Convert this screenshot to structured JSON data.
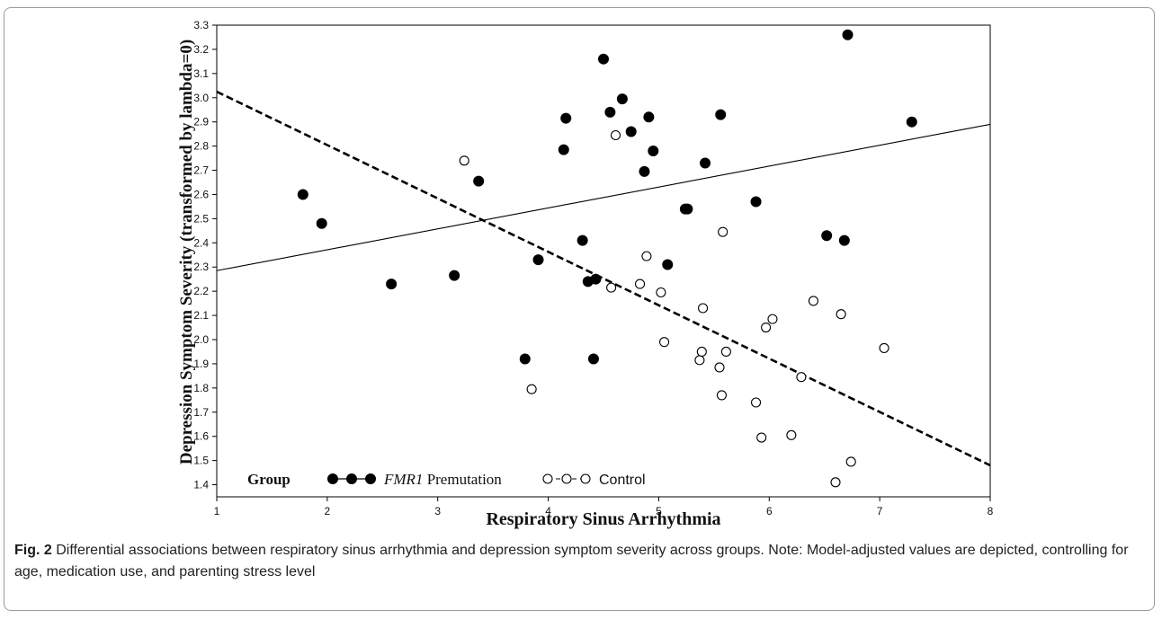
{
  "chart_data": {
    "type": "scatter",
    "xlabel": "Respiratory Sinus Arrhythmia",
    "ylabel": "Depression Symptom Severity (transformed by lambda=0)",
    "xlim": [
      1,
      8
    ],
    "ylim": [
      1.35,
      3.3
    ],
    "xticks": [
      "1",
      "2",
      "3",
      "4",
      "5",
      "6",
      "7",
      "8"
    ],
    "yticks": [
      "1.4",
      "1.5",
      "1.6",
      "1.7",
      "1.8",
      "1.9",
      "2.0",
      "2.1",
      "2.2",
      "2.3",
      "2.4",
      "2.5",
      "2.6",
      "2.7",
      "2.8",
      "2.9",
      "3.0",
      "3.1",
      "3.2",
      "3.3"
    ],
    "legend": {
      "title": "Group",
      "placement": "bottom-left",
      "entries": [
        {
          "label_italic": "FMR1",
          "label_rest": " Premutation"
        },
        {
          "label_italic": "",
          "label_rest": "Control"
        }
      ]
    },
    "series": [
      {
        "name": "FMR1 Premutation",
        "marker": "filled-circle",
        "fit_line": {
          "style": "solid",
          "x": [
            1,
            8
          ],
          "y": [
            2.285,
            2.89
          ]
        },
        "points": [
          [
            1.78,
            2.6
          ],
          [
            1.95,
            2.48
          ],
          [
            2.58,
            2.23
          ],
          [
            3.15,
            2.265
          ],
          [
            3.37,
            2.655
          ],
          [
            3.79,
            1.92
          ],
          [
            3.91,
            2.33
          ],
          [
            4.14,
            2.785
          ],
          [
            4.16,
            2.915
          ],
          [
            4.31,
            2.41
          ],
          [
            4.36,
            2.24
          ],
          [
            4.41,
            1.92
          ],
          [
            4.43,
            2.25
          ],
          [
            4.5,
            3.16
          ],
          [
            4.56,
            2.94
          ],
          [
            4.67,
            2.995
          ],
          [
            4.75,
            2.86
          ],
          [
            4.87,
            2.695
          ],
          [
            4.91,
            2.92
          ],
          [
            4.95,
            2.78
          ],
          [
            5.08,
            2.31
          ],
          [
            5.24,
            2.54
          ],
          [
            5.26,
            2.54
          ],
          [
            5.42,
            2.73
          ],
          [
            5.56,
            2.93
          ],
          [
            5.88,
            2.57
          ],
          [
            6.52,
            2.43
          ],
          [
            6.68,
            2.41
          ],
          [
            6.71,
            3.26
          ],
          [
            7.29,
            2.9
          ]
        ]
      },
      {
        "name": "Control",
        "marker": "open-circle",
        "fit_line": {
          "style": "dashed",
          "x": [
            1,
            8
          ],
          "y": [
            3.025,
            1.48
          ]
        },
        "points": [
          [
            3.24,
            2.74
          ],
          [
            3.85,
            1.795
          ],
          [
            4.57,
            2.215
          ],
          [
            4.61,
            2.845
          ],
          [
            4.83,
            2.23
          ],
          [
            4.89,
            2.345
          ],
          [
            5.02,
            2.195
          ],
          [
            5.05,
            1.99
          ],
          [
            5.37,
            1.915
          ],
          [
            5.39,
            1.95
          ],
          [
            5.4,
            2.13
          ],
          [
            5.55,
            1.885
          ],
          [
            5.58,
            2.445
          ],
          [
            5.57,
            1.77
          ],
          [
            5.61,
            1.95
          ],
          [
            5.88,
            1.74
          ],
          [
            5.93,
            1.595
          ],
          [
            5.97,
            2.05
          ],
          [
            6.03,
            2.085
          ],
          [
            6.2,
            1.605
          ],
          [
            6.29,
            1.845
          ],
          [
            6.4,
            2.16
          ],
          [
            6.6,
            1.41
          ],
          [
            6.65,
            2.105
          ],
          [
            6.74,
            1.495
          ],
          [
            7.04,
            1.965
          ]
        ]
      }
    ]
  },
  "caption": {
    "label": "Fig. 2",
    "text": " Differential associations between respiratory sinus arrhythmia and depression symptom severity across groups. Note: Model-adjusted values are depicted, controlling for age, medication use, and parenting stress level"
  }
}
